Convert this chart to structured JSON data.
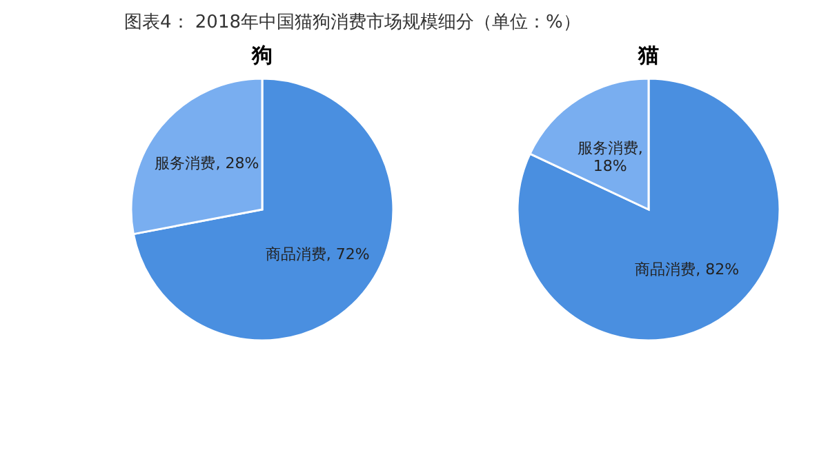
{
  "chart_data": [
    {
      "type": "pie",
      "title": "狗",
      "annotations": [
        "图表4：  2018年中国猫狗消费市场规模细分（单位：%）"
      ],
      "categories": [
        "商品消费",
        "服务消费"
      ],
      "values": [
        72,
        28
      ],
      "value_labels": [
        ", 72%",
        ", 28%"
      ],
      "colors": [
        "#4a8fe0",
        "#79aef0"
      ]
    },
    {
      "type": "pie",
      "title": "猫",
      "categories": [
        "商品消费",
        "服务消费"
      ],
      "values": [
        82,
        18
      ],
      "value_labels": [
        ", 82%",
        ", 18%"
      ],
      "colors": [
        "#4a8fe0",
        "#79aef0"
      ]
    }
  ]
}
